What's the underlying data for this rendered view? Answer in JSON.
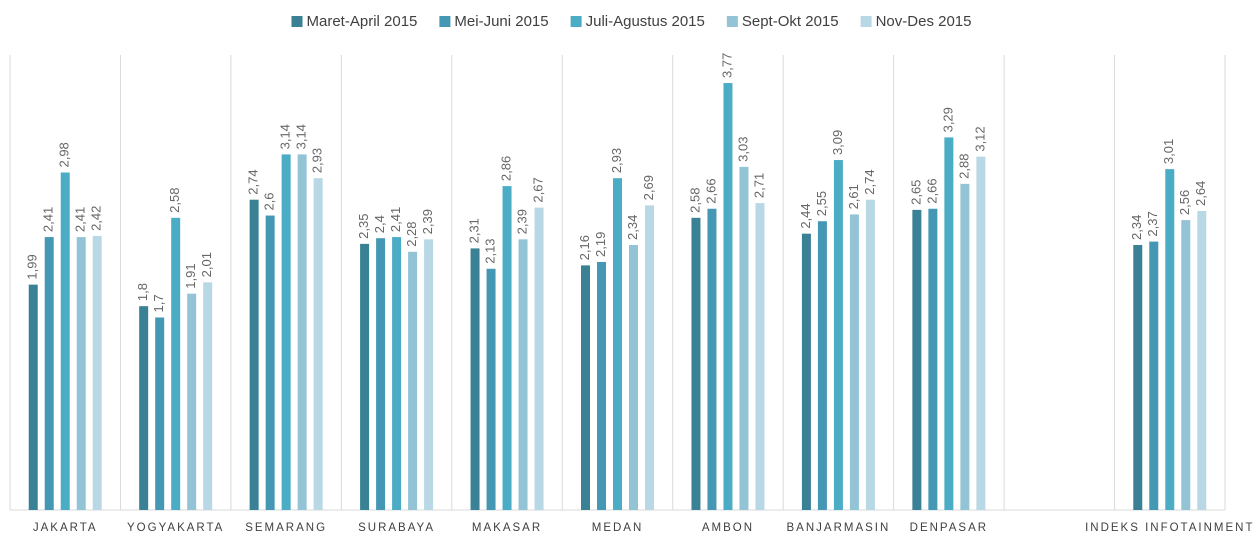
{
  "chart_data": {
    "type": "bar",
    "categories": [
      "JAKARTA",
      "YOGYAKARTA",
      "SEMARANG",
      "SURABAYA",
      "MAKASAR",
      "MEDAN",
      "AMBON",
      "BANJARMASIN",
      "DENPASAR",
      null,
      "INDEKS INFOTAINMENT"
    ],
    "ylim": [
      0,
      4
    ],
    "series": [
      {
        "name": "Maret-April 2015",
        "color": "#3a8196",
        "values": [
          1.99,
          1.8,
          2.74,
          2.35,
          2.31,
          2.16,
          2.58,
          2.44,
          2.65,
          null,
          2.34
        ],
        "value_labels": [
          "1,99",
          "1,8",
          "2,74",
          "2,35",
          "2,31",
          "2,16",
          "2,58",
          "2,44",
          "2,65",
          null,
          "2,34"
        ]
      },
      {
        "name": "Mei-Juni 2015",
        "color": "#4598b4",
        "values": [
          2.41,
          1.7,
          2.6,
          2.4,
          2.13,
          2.19,
          2.66,
          2.55,
          2.66,
          null,
          2.37
        ],
        "value_labels": [
          "2,41",
          "1,7",
          "2,6",
          "2,4",
          "2,13",
          "2,19",
          "2,66",
          "2,55",
          "2,66",
          null,
          "2,37"
        ]
      },
      {
        "name": "Juli-Agustus 2015",
        "color": "#4bacc6",
        "values": [
          2.98,
          2.58,
          3.14,
          2.41,
          2.86,
          2.93,
          3.77,
          3.09,
          3.29,
          null,
          3.01
        ],
        "value_labels": [
          "2,98",
          "2,58",
          "3,14",
          "2,41",
          "2,86",
          "2,93",
          "3,77",
          "3,09",
          "3,29",
          null,
          "3,01"
        ]
      },
      {
        "name": "Sept-Okt 2015",
        "color": "#93c4d6",
        "values": [
          2.41,
          1.91,
          3.14,
          2.28,
          2.39,
          2.34,
          3.03,
          2.61,
          2.88,
          null,
          2.56
        ],
        "value_labels": [
          "2,41",
          "1,91",
          "3,14",
          "2,28",
          "2,39",
          "2,34",
          "3,03",
          "2,61",
          "2,88",
          null,
          "2,56"
        ]
      },
      {
        "name": "Nov-Des 2015",
        "color": "#b8d8e5",
        "values": [
          2.42,
          2.01,
          2.93,
          2.39,
          2.67,
          2.69,
          2.71,
          2.74,
          3.12,
          null,
          2.64
        ],
        "value_labels": [
          "2,42",
          "2,01",
          "2,93",
          "2,39",
          "2,67",
          "2,69",
          "2,71",
          "2,74",
          "3,12",
          null,
          "2,64"
        ]
      }
    ]
  }
}
